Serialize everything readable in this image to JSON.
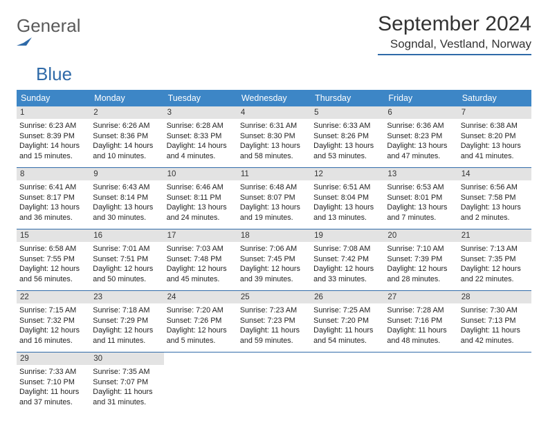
{
  "branding": {
    "logo_word1": "General",
    "logo_word2": "Blue",
    "logo_word1_color": "#5a5a5a",
    "logo_word2_color": "#2f6aa8",
    "logo_mark_color": "#2f6aa8"
  },
  "header": {
    "title": "September 2024",
    "location": "Sogndal, Vestland, Norway"
  },
  "style": {
    "dow_bg": "#3d86c6",
    "dow_fg": "#ffffff",
    "daynum_bg": "#e3e3e3",
    "week_border": "#2f6aa8",
    "text_color": "#222222",
    "font_family": "Arial",
    "title_fontsize": 30,
    "location_fontsize": 17,
    "dow_fontsize": 12.5,
    "daynum_fontsize": 11.5,
    "body_fontsize": 10.8
  },
  "days_of_week": [
    "Sunday",
    "Monday",
    "Tuesday",
    "Wednesday",
    "Thursday",
    "Friday",
    "Saturday"
  ],
  "weeks": [
    [
      {
        "n": "1",
        "sunrise": "6:23 AM",
        "sunset": "8:39 PM",
        "daylight": "14 hours and 15 minutes."
      },
      {
        "n": "2",
        "sunrise": "6:26 AM",
        "sunset": "8:36 PM",
        "daylight": "14 hours and 10 minutes."
      },
      {
        "n": "3",
        "sunrise": "6:28 AM",
        "sunset": "8:33 PM",
        "daylight": "14 hours and 4 minutes."
      },
      {
        "n": "4",
        "sunrise": "6:31 AM",
        "sunset": "8:30 PM",
        "daylight": "13 hours and 58 minutes."
      },
      {
        "n": "5",
        "sunrise": "6:33 AM",
        "sunset": "8:26 PM",
        "daylight": "13 hours and 53 minutes."
      },
      {
        "n": "6",
        "sunrise": "6:36 AM",
        "sunset": "8:23 PM",
        "daylight": "13 hours and 47 minutes."
      },
      {
        "n": "7",
        "sunrise": "6:38 AM",
        "sunset": "8:20 PM",
        "daylight": "13 hours and 41 minutes."
      }
    ],
    [
      {
        "n": "8",
        "sunrise": "6:41 AM",
        "sunset": "8:17 PM",
        "daylight": "13 hours and 36 minutes."
      },
      {
        "n": "9",
        "sunrise": "6:43 AM",
        "sunset": "8:14 PM",
        "daylight": "13 hours and 30 minutes."
      },
      {
        "n": "10",
        "sunrise": "6:46 AM",
        "sunset": "8:11 PM",
        "daylight": "13 hours and 24 minutes."
      },
      {
        "n": "11",
        "sunrise": "6:48 AM",
        "sunset": "8:07 PM",
        "daylight": "13 hours and 19 minutes."
      },
      {
        "n": "12",
        "sunrise": "6:51 AM",
        "sunset": "8:04 PM",
        "daylight": "13 hours and 13 minutes."
      },
      {
        "n": "13",
        "sunrise": "6:53 AM",
        "sunset": "8:01 PM",
        "daylight": "13 hours and 7 minutes."
      },
      {
        "n": "14",
        "sunrise": "6:56 AM",
        "sunset": "7:58 PM",
        "daylight": "13 hours and 2 minutes."
      }
    ],
    [
      {
        "n": "15",
        "sunrise": "6:58 AM",
        "sunset": "7:55 PM",
        "daylight": "12 hours and 56 minutes."
      },
      {
        "n": "16",
        "sunrise": "7:01 AM",
        "sunset": "7:51 PM",
        "daylight": "12 hours and 50 minutes."
      },
      {
        "n": "17",
        "sunrise": "7:03 AM",
        "sunset": "7:48 PM",
        "daylight": "12 hours and 45 minutes."
      },
      {
        "n": "18",
        "sunrise": "7:06 AM",
        "sunset": "7:45 PM",
        "daylight": "12 hours and 39 minutes."
      },
      {
        "n": "19",
        "sunrise": "7:08 AM",
        "sunset": "7:42 PM",
        "daylight": "12 hours and 33 minutes."
      },
      {
        "n": "20",
        "sunrise": "7:10 AM",
        "sunset": "7:39 PM",
        "daylight": "12 hours and 28 minutes."
      },
      {
        "n": "21",
        "sunrise": "7:13 AM",
        "sunset": "7:35 PM",
        "daylight": "12 hours and 22 minutes."
      }
    ],
    [
      {
        "n": "22",
        "sunrise": "7:15 AM",
        "sunset": "7:32 PM",
        "daylight": "12 hours and 16 minutes."
      },
      {
        "n": "23",
        "sunrise": "7:18 AM",
        "sunset": "7:29 PM",
        "daylight": "12 hours and 11 minutes."
      },
      {
        "n": "24",
        "sunrise": "7:20 AM",
        "sunset": "7:26 PM",
        "daylight": "12 hours and 5 minutes."
      },
      {
        "n": "25",
        "sunrise": "7:23 AM",
        "sunset": "7:23 PM",
        "daylight": "11 hours and 59 minutes."
      },
      {
        "n": "26",
        "sunrise": "7:25 AM",
        "sunset": "7:20 PM",
        "daylight": "11 hours and 54 minutes."
      },
      {
        "n": "27",
        "sunrise": "7:28 AM",
        "sunset": "7:16 PM",
        "daylight": "11 hours and 48 minutes."
      },
      {
        "n": "28",
        "sunrise": "7:30 AM",
        "sunset": "7:13 PM",
        "daylight": "11 hours and 42 minutes."
      }
    ],
    [
      {
        "n": "29",
        "sunrise": "7:33 AM",
        "sunset": "7:10 PM",
        "daylight": "11 hours and 37 minutes."
      },
      {
        "n": "30",
        "sunrise": "7:35 AM",
        "sunset": "7:07 PM",
        "daylight": "11 hours and 31 minutes."
      },
      null,
      null,
      null,
      null,
      null
    ]
  ],
  "labels": {
    "sunrise": "Sunrise:",
    "sunset": "Sunset:",
    "daylight": "Daylight:"
  }
}
